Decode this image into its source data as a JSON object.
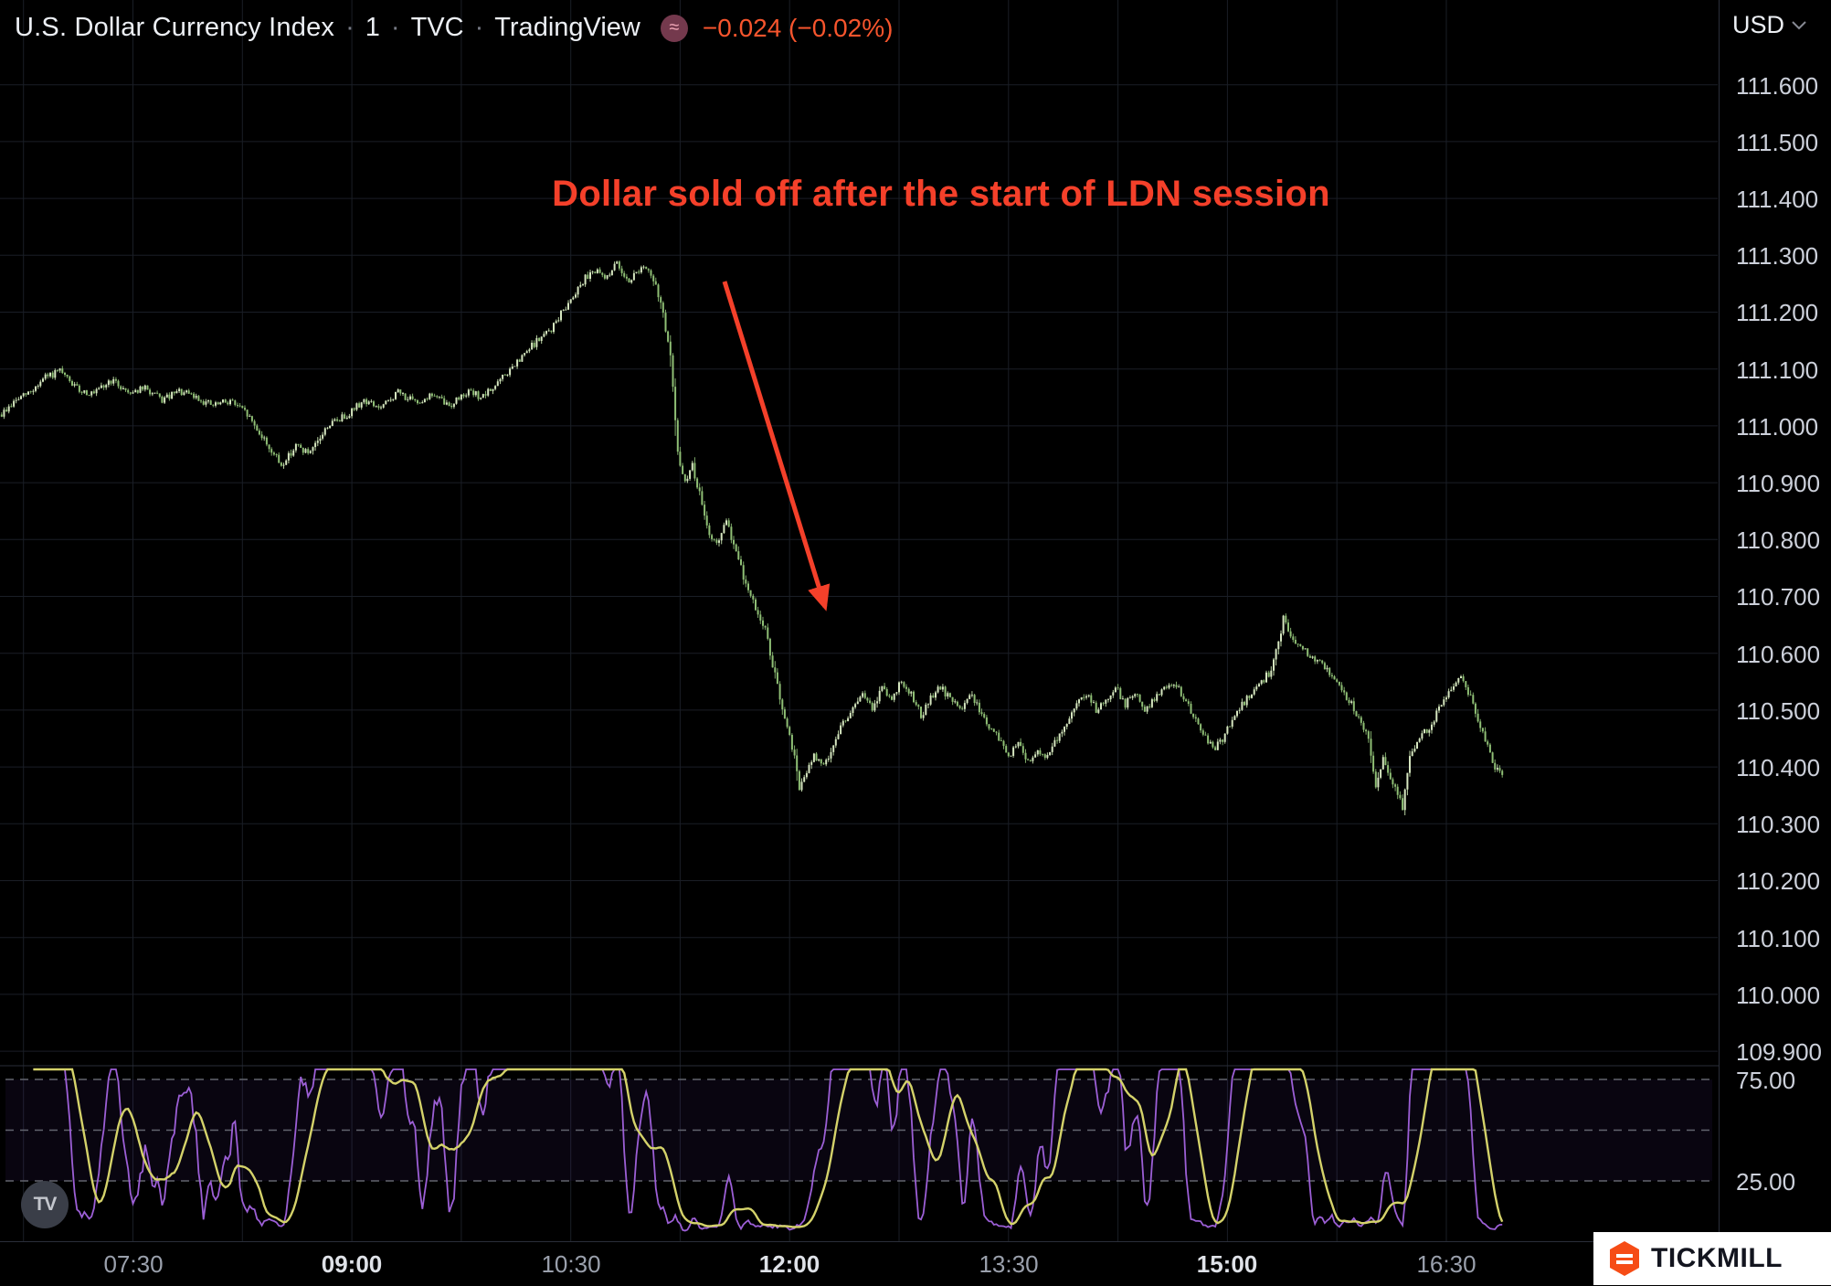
{
  "header": {
    "title": "U.S. Dollar Currency Index",
    "separator": "·",
    "interval": "1",
    "exchange": "TVC",
    "provider": "TradingView",
    "badge_glyph": "≈",
    "change_text": "−0.024 (−0.02%)",
    "change_color": "#f7552d"
  },
  "annotation": {
    "text": "Dollar sold off after the start of LDN session",
    "color": "#f4402a"
  },
  "price_axis": {
    "currency": "USD",
    "labels": [
      "111.600",
      "111.500",
      "111.400",
      "111.300",
      "111.200",
      "111.100",
      "111.000",
      "110.900",
      "110.800",
      "110.700",
      "110.600",
      "110.500",
      "110.400",
      "110.300",
      "110.200",
      "110.100",
      "110.000",
      "109.900"
    ]
  },
  "oscillator_axis": {
    "labels": [
      "75.00",
      "25.00"
    ]
  },
  "time_axis": {
    "labels": [
      {
        "text": "07:30",
        "bold": false
      },
      {
        "text": "09:00",
        "bold": true
      },
      {
        "text": "10:30",
        "bold": false
      },
      {
        "text": "12:00",
        "bold": true
      },
      {
        "text": "13:30",
        "bold": false
      },
      {
        "text": "15:00",
        "bold": true
      },
      {
        "text": "16:30",
        "bold": false
      }
    ]
  },
  "logos": {
    "tradingview": "TV",
    "tickmill": "TICKMILL"
  },
  "chart_data": {
    "type": "candlestick",
    "title": "U.S. Dollar Currency Index, 1 minute, TVC",
    "interval_minutes": 1,
    "price_axis_range": [
      109.9,
      111.65
    ],
    "price_gridline_step": 0.1,
    "time_ticks": [
      "07:30",
      "09:00",
      "10:30",
      "12:00",
      "13:30",
      "15:00",
      "16:30"
    ],
    "vertical_grid_step_minutes": 45,
    "session_start_minute": 396,
    "session_end_minute": 1013,
    "price_path_anchors": [
      [
        396,
        111.02
      ],
      [
        402,
        111.045
      ],
      [
        408,
        111.06
      ],
      [
        414,
        111.085
      ],
      [
        420,
        111.095
      ],
      [
        427,
        111.065
      ],
      [
        434,
        111.055
      ],
      [
        441,
        111.08
      ],
      [
        448,
        111.06
      ],
      [
        455,
        111.065
      ],
      [
        462,
        111.045
      ],
      [
        469,
        111.06
      ],
      [
        476,
        111.05
      ],
      [
        483,
        111.035
      ],
      [
        490,
        111.045
      ],
      [
        497,
        111.02
      ],
      [
        504,
        110.975
      ],
      [
        511,
        110.93
      ],
      [
        517,
        110.965
      ],
      [
        523,
        110.95
      ],
      [
        530,
        111.0
      ],
      [
        538,
        111.02
      ],
      [
        545,
        111.045
      ],
      [
        552,
        111.03
      ],
      [
        559,
        111.06
      ],
      [
        566,
        111.04
      ],
      [
        573,
        111.055
      ],
      [
        580,
        111.035
      ],
      [
        587,
        111.06
      ],
      [
        594,
        111.05
      ],
      [
        601,
        111.08
      ],
      [
        608,
        111.11
      ],
      [
        615,
        111.145
      ],
      [
        622,
        111.17
      ],
      [
        628,
        111.21
      ],
      [
        634,
        111.25
      ],
      [
        639,
        111.275
      ],
      [
        644,
        111.26
      ],
      [
        649,
        111.285
      ],
      [
        654,
        111.255
      ],
      [
        659,
        111.28
      ],
      [
        663,
        111.265
      ],
      [
        667,
        111.22
      ],
      [
        671,
        111.12
      ],
      [
        674,
        110.95
      ],
      [
        677,
        110.9
      ],
      [
        680,
        110.93
      ],
      [
        683,
        110.88
      ],
      [
        686,
        110.82
      ],
      [
        690,
        110.79
      ],
      [
        694,
        110.83
      ],
      [
        698,
        110.78
      ],
      [
        702,
        110.72
      ],
      [
        706,
        110.68
      ],
      [
        710,
        110.64
      ],
      [
        714,
        110.56
      ],
      [
        717,
        110.5
      ],
      [
        720,
        110.45
      ],
      [
        722,
        110.42
      ],
      [
        724,
        110.36
      ],
      [
        727,
        110.39
      ],
      [
        730,
        110.42
      ],
      [
        734,
        110.4
      ],
      [
        738,
        110.44
      ],
      [
        742,
        110.48
      ],
      [
        746,
        110.5
      ],
      [
        750,
        110.53
      ],
      [
        754,
        110.5
      ],
      [
        758,
        110.54
      ],
      [
        762,
        110.52
      ],
      [
        766,
        110.55
      ],
      [
        770,
        110.53
      ],
      [
        774,
        110.49
      ],
      [
        778,
        110.52
      ],
      [
        782,
        110.54
      ],
      [
        786,
        110.52
      ],
      [
        790,
        110.5
      ],
      [
        794,
        110.53
      ],
      [
        798,
        110.5
      ],
      [
        802,
        110.47
      ],
      [
        806,
        110.45
      ],
      [
        810,
        110.42
      ],
      [
        814,
        110.44
      ],
      [
        818,
        110.41
      ],
      [
        822,
        110.43
      ],
      [
        826,
        110.42
      ],
      [
        830,
        110.45
      ],
      [
        834,
        110.48
      ],
      [
        838,
        110.51
      ],
      [
        842,
        110.53
      ],
      [
        846,
        110.5
      ],
      [
        850,
        110.52
      ],
      [
        854,
        110.54
      ],
      [
        858,
        110.51
      ],
      [
        862,
        110.53
      ],
      [
        866,
        110.5
      ],
      [
        870,
        110.52
      ],
      [
        874,
        110.54
      ],
      [
        878,
        110.55
      ],
      [
        882,
        110.52
      ],
      [
        886,
        110.49
      ],
      [
        890,
        110.46
      ],
      [
        894,
        110.43
      ],
      [
        898,
        110.45
      ],
      [
        902,
        110.48
      ],
      [
        906,
        110.51
      ],
      [
        910,
        110.53
      ],
      [
        914,
        110.55
      ],
      [
        918,
        110.57
      ],
      [
        921,
        110.62
      ],
      [
        923,
        110.66
      ],
      [
        926,
        110.63
      ],
      [
        929,
        110.61
      ],
      [
        933,
        110.6
      ],
      [
        937,
        110.585
      ],
      [
        941,
        110.57
      ],
      [
        945,
        110.55
      ],
      [
        948,
        110.53
      ],
      [
        951,
        110.51
      ],
      [
        955,
        110.48
      ],
      [
        958,
        110.45
      ],
      [
        961,
        110.36
      ],
      [
        964,
        110.42
      ],
      [
        967,
        110.38
      ],
      [
        970,
        110.35
      ],
      [
        972,
        110.33
      ],
      [
        975,
        110.42
      ],
      [
        979,
        110.45
      ],
      [
        983,
        110.47
      ],
      [
        987,
        110.5
      ],
      [
        991,
        110.53
      ],
      [
        995,
        110.56
      ],
      [
        998,
        110.545
      ],
      [
        1001,
        110.51
      ],
      [
        1004,
        110.47
      ],
      [
        1007,
        110.44
      ],
      [
        1010,
        110.4
      ],
      [
        1013,
        110.38
      ]
    ],
    "colors": {
      "up_body": "#d6e6c0",
      "up_wick": "#b7cfa0",
      "down_body": "#8fbf75",
      "down_wick": "#7da868",
      "grid": "#1a1e26",
      "osc_fast": "#9c5fd6",
      "osc_slow": "#d4d26a",
      "osc_level_dash": "#62656e",
      "osc_band_fill": "rgba(123,77,230,0.07)"
    },
    "oscillator": {
      "type": "stochastic",
      "fast_line": "stochastic %K(14) smoothed 3, purple",
      "slow_line": "moving average of fast line (12), yellow",
      "levels": [
        75,
        50,
        25
      ],
      "axis_labels": [
        "75.00",
        "25.00"
      ]
    }
  }
}
